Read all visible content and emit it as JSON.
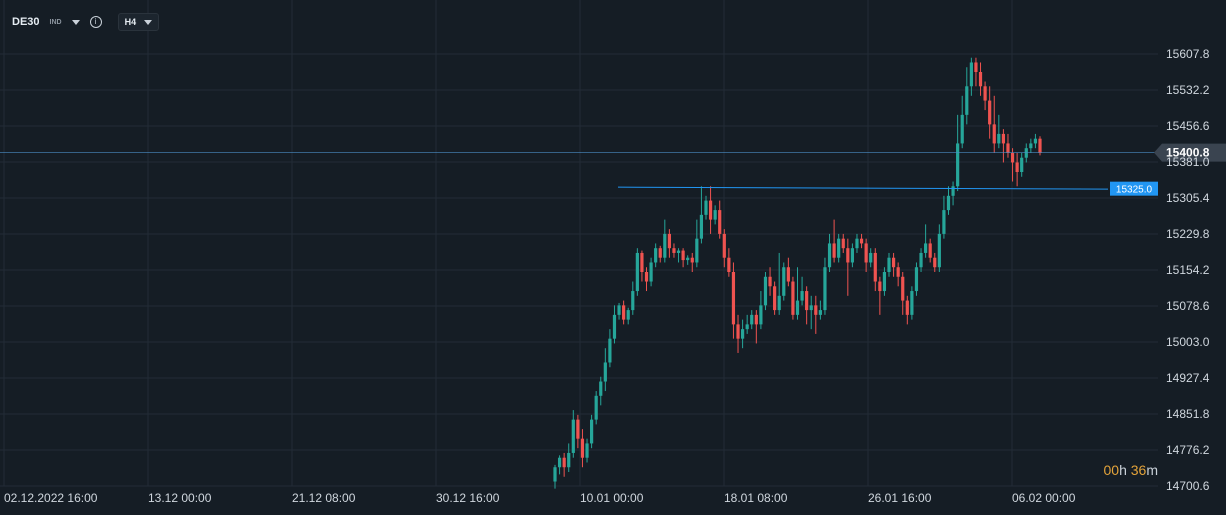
{
  "toolbar": {
    "symbol": "DE30",
    "instrument_type": "IND",
    "timeframe": "H4",
    "icons": [
      "chevron-down-icon",
      "info-icon",
      "chevron-down-icon"
    ]
  },
  "countdown": {
    "hours": "00",
    "h": "h",
    "minutes": "36",
    "m": "m"
  },
  "colors": {
    "up": "#26a69a",
    "down": "#ef5350",
    "price_line": "#4a90c8",
    "level_line": "#2196f3",
    "grid": "#222c36",
    "countdown": "#e3a33a"
  },
  "chart_data": {
    "type": "candlestick",
    "y_axis_ticks": [
      15607.8,
      15532.2,
      15456.6,
      15381.0,
      15305.4,
      15229.8,
      15154.2,
      15078.6,
      15003.0,
      14927.4,
      14851.8,
      14776.2,
      14700.6
    ],
    "x_axis_ticks": [
      "02.12.2022  16:00",
      "13.12  00:00",
      "21.12  08:00",
      "30.12  16:00",
      "10.01  00:00",
      "18.01  08:00",
      "26.01  16:00",
      "06.02  00:00"
    ],
    "current_price": {
      "label": "15400.8",
      "value": 15400.8
    },
    "horizontal_level": {
      "label": "15325.0",
      "value": 15325.0
    },
    "ylim": [
      14690,
      15640
    ],
    "candles": [
      [
        14710,
        14740,
        14695,
        14745
      ],
      [
        14740,
        14760,
        14725,
        14765
      ],
      [
        14760,
        14740,
        14720,
        14770
      ],
      [
        14740,
        14770,
        14730,
        14790
      ],
      [
        14770,
        14840,
        14760,
        14860
      ],
      [
        14840,
        14800,
        14780,
        14850
      ],
      [
        14800,
        14760,
        14740,
        14820
      ],
      [
        14760,
        14790,
        14750,
        14800
      ],
      [
        14790,
        14840,
        14780,
        14850
      ],
      [
        14840,
        14890,
        14830,
        14900
      ],
      [
        14890,
        14920,
        14870,
        14930
      ],
      [
        14920,
        14960,
        14900,
        14990
      ],
      [
        14960,
        15010,
        14950,
        15030
      ],
      [
        15010,
        15060,
        15000,
        15080
      ],
      [
        15060,
        15080,
        15050,
        15085
      ],
      [
        15080,
        15050,
        15040,
        15090
      ],
      [
        15050,
        15070,
        15040,
        15075
      ],
      [
        15070,
        15110,
        15060,
        15130
      ],
      [
        15110,
        15190,
        15100,
        15200
      ],
      [
        15190,
        15150,
        15130,
        15195
      ],
      [
        15150,
        15130,
        15110,
        15160
      ],
      [
        15130,
        15170,
        15120,
        15180
      ],
      [
        15170,
        15200,
        15160,
        15210
      ],
      [
        15200,
        15180,
        15170,
        15205
      ],
      [
        15180,
        15230,
        15170,
        15260
      ],
      [
        15230,
        15200,
        15180,
        15240
      ],
      [
        15200,
        15190,
        15180,
        15210
      ],
      [
        15190,
        15195,
        15170,
        15200
      ],
      [
        15195,
        15175,
        15160,
        15200
      ],
      [
        15175,
        15180,
        15165,
        15185
      ],
      [
        15180,
        15170,
        15150,
        15190
      ],
      [
        15170,
        15220,
        15160,
        15260
      ],
      [
        15220,
        15270,
        15210,
        15330
      ],
      [
        15270,
        15300,
        15260,
        15310
      ],
      [
        15300,
        15260,
        15230,
        15330
      ],
      [
        15260,
        15280,
        15250,
        15290
      ],
      [
        15280,
        15230,
        15220,
        15300
      ],
      [
        15230,
        15180,
        15160,
        15240
      ],
      [
        15180,
        15150,
        15140,
        15200
      ],
      [
        15150,
        15040,
        15010,
        15170
      ],
      [
        15040,
        15010,
        14980,
        15060
      ],
      [
        15010,
        15030,
        14990,
        15050
      ],
      [
        15030,
        15040,
        15020,
        15060
      ],
      [
        15040,
        15060,
        15030,
        15070
      ],
      [
        15060,
        15040,
        15000,
        15070
      ],
      [
        15040,
        15080,
        15030,
        15110
      ],
      [
        15080,
        15140,
        15070,
        15150
      ],
      [
        15140,
        15120,
        15100,
        15160
      ],
      [
        15120,
        15070,
        15060,
        15130
      ],
      [
        15070,
        15100,
        15060,
        15190
      ],
      [
        15100,
        15160,
        15090,
        15170
      ],
      [
        15160,
        15130,
        15120,
        15180
      ],
      [
        15130,
        15060,
        15050,
        15140
      ],
      [
        15060,
        15090,
        15050,
        15160
      ],
      [
        15090,
        15110,
        15080,
        15140
      ],
      [
        15110,
        15070,
        15040,
        15120
      ],
      [
        15070,
        15080,
        15030,
        15100
      ],
      [
        15080,
        15060,
        15020,
        15100
      ],
      [
        15060,
        15070,
        15050,
        15090
      ],
      [
        15070,
        15160,
        15060,
        15180
      ],
      [
        15160,
        15210,
        15150,
        15230
      ],
      [
        15210,
        15180,
        15170,
        15260
      ],
      [
        15180,
        15220,
        15170,
        15230
      ],
      [
        15220,
        15200,
        15190,
        15230
      ],
      [
        15200,
        15170,
        15100,
        15220
      ],
      [
        15170,
        15200,
        15160,
        15210
      ],
      [
        15200,
        15220,
        15190,
        15230
      ],
      [
        15220,
        15210,
        15200,
        15230
      ],
      [
        15210,
        15170,
        15150,
        15220
      ],
      [
        15170,
        15190,
        15160,
        15200
      ],
      [
        15190,
        15130,
        15110,
        15200
      ],
      [
        15130,
        15110,
        15060,
        15140
      ],
      [
        15110,
        15150,
        15100,
        15160
      ],
      [
        15150,
        15180,
        15140,
        15190
      ],
      [
        15180,
        15160,
        15140,
        15190
      ],
      [
        15160,
        15140,
        15120,
        15170
      ],
      [
        15140,
        15090,
        15060,
        15150
      ],
      [
        15090,
        15060,
        15040,
        15100
      ],
      [
        15060,
        15110,
        15050,
        15120
      ],
      [
        15110,
        15160,
        15100,
        15170
      ],
      [
        15160,
        15190,
        15150,
        15200
      ],
      [
        15190,
        15210,
        15180,
        15250
      ],
      [
        15210,
        15180,
        15170,
        15220
      ],
      [
        15180,
        15160,
        15150,
        15190
      ],
      [
        15160,
        15230,
        15150,
        15250
      ],
      [
        15230,
        15280,
        15220,
        15310
      ],
      [
        15280,
        15310,
        15270,
        15330
      ],
      [
        15310,
        15330,
        15290,
        15340
      ],
      [
        15330,
        15420,
        15320,
        15480
      ],
      [
        15420,
        15480,
        15410,
        15520
      ],
      [
        15480,
        15540,
        15460,
        15580
      ],
      [
        15540,
        15590,
        15520,
        15600
      ],
      [
        15590,
        15570,
        15540,
        15600
      ],
      [
        15570,
        15540,
        15520,
        15590
      ],
      [
        15540,
        15510,
        15490,
        15550
      ],
      [
        15510,
        15460,
        15430,
        15540
      ],
      [
        15460,
        15420,
        15400,
        15520
      ],
      [
        15420,
        15440,
        15410,
        15480
      ],
      [
        15440,
        15420,
        15380,
        15450
      ],
      [
        15420,
        15400,
        15390,
        15440
      ],
      [
        15400,
        15380,
        15340,
        15410
      ],
      [
        15380,
        15360,
        15330,
        15400
      ],
      [
        15360,
        15390,
        15350,
        15400
      ],
      [
        15390,
        15410,
        15380,
        15420
      ],
      [
        15410,
        15420,
        15400,
        15430
      ],
      [
        15420,
        15430,
        15410,
        15440
      ],
      [
        15430,
        15400,
        15395,
        15435
      ]
    ]
  }
}
